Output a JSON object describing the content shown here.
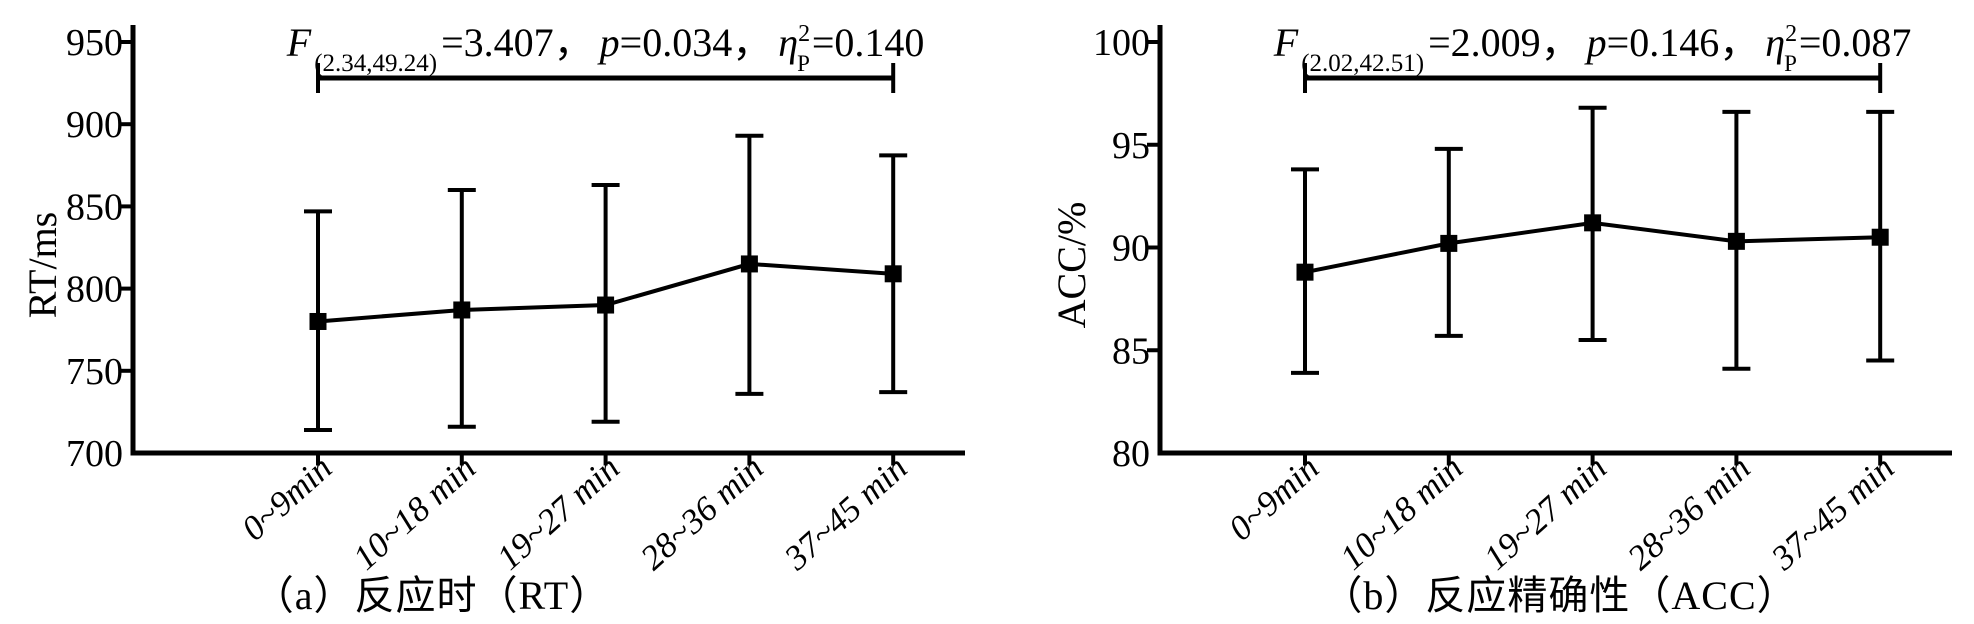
{
  "page": {
    "background": "#ffffff",
    "ink_color": "#000000"
  },
  "chart_data": [
    {
      "type": "line",
      "panel_id": "a",
      "caption": "（a）反应时（RT）",
      "ylabel": "RT/ms",
      "ylim": [
        700,
        950
      ],
      "ytick_step": 50,
      "yticks": [
        700,
        750,
        800,
        850,
        900,
        950
      ],
      "grid": false,
      "legend": "none",
      "categories": [
        "0~9min",
        "10~18 min",
        "19~27 min",
        "28~36 min",
        "37~45 min"
      ],
      "series": [
        {
          "name": "RT",
          "marker": "square",
          "values": [
            780,
            787,
            790,
            815,
            809
          ],
          "upper": [
            847,
            860,
            863,
            893,
            881
          ],
          "lower": [
            714,
            716,
            719,
            736,
            737
          ]
        }
      ],
      "stats": {
        "f_label": "F",
        "df": "(2.34,49.24)",
        "f_value": "=3.407，",
        "p_label": "p",
        "p_value": "=0.034，",
        "eta_label": "η",
        "eta_sup": "2",
        "eta_sub": "P",
        "eta_value": "=0.140"
      }
    },
    {
      "type": "line",
      "panel_id": "b",
      "caption": "（b）反应精确性（ACC）",
      "ylabel": "ACC/%",
      "ylim": [
        80,
        100
      ],
      "ytick_step": 5,
      "yticks": [
        80,
        85,
        90,
        95,
        100
      ],
      "grid": false,
      "legend": "none",
      "categories": [
        "0~9min",
        "10~18 min",
        "19~27 min",
        "28~36 min",
        "37~45 min"
      ],
      "series": [
        {
          "name": "ACC",
          "marker": "square",
          "values": [
            88.8,
            90.2,
            91.2,
            90.3,
            90.5
          ],
          "upper": [
            93.8,
            94.8,
            96.8,
            96.6,
            96.6
          ],
          "lower": [
            83.9,
            85.7,
            85.5,
            84.1,
            84.5
          ]
        }
      ],
      "stats": {
        "f_label": "F",
        "df": "(2.02,42.51)",
        "f_value": "=2.009，",
        "p_label": "p",
        "p_value": "=0.146，",
        "eta_label": "η",
        "eta_sup": "2",
        "eta_sub": "P",
        "eta_value": "=0.087"
      }
    }
  ]
}
